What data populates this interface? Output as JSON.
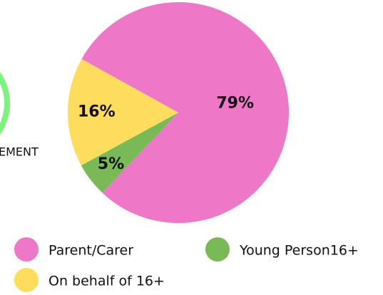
{
  "chart_data": {
    "type": "pie",
    "categories": [
      "Parent/Carer",
      "Young Person16+",
      "On behalf of 16+"
    ],
    "values": [
      79,
      5,
      16
    ],
    "colors": [
      "#ee77c8",
      "#7aba56",
      "#fedc5e"
    ],
    "annotations": [
      "EMENT"
    ]
  }
}
